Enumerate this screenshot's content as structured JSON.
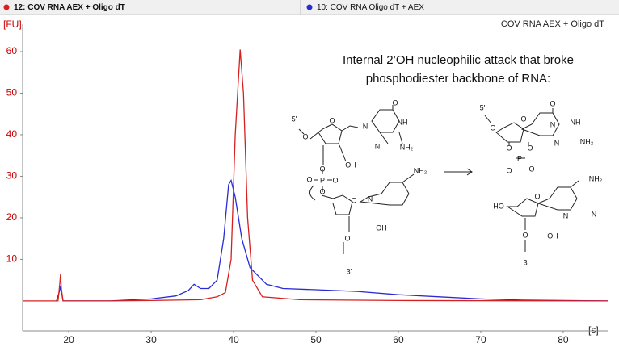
{
  "chart_data": {
    "type": "line",
    "subtitle": "COV RNA AEX + Oligo dT",
    "y_label": "[FU]",
    "x_label": "[s]",
    "annotation": [
      "Internal 2’OH nucleophilic attack that broke",
      "phosphodiester backbone of RNA:"
    ],
    "xlim": [
      14.4,
      85.4
    ],
    "ylim": [
      -7.2,
      66.6
    ],
    "xticks": [
      20,
      30,
      40,
      50,
      60,
      70,
      80
    ],
    "yticks": [
      10,
      20,
      30,
      40,
      50,
      60
    ],
    "series": [
      {
        "name": "12: COV RNA AEX + Oligo dT",
        "color": "#d62020",
        "x": [
          14.4,
          18.7,
          18.9,
          19.0,
          19.1,
          19.3,
          25,
          30,
          36,
          38,
          39,
          39.7,
          40.2,
          40.8,
          41.2,
          41.7,
          42.3,
          43.5,
          48,
          60,
          85.4
        ],
        "values": [
          0,
          0,
          4,
          6.5,
          3,
          0,
          0,
          0.1,
          0.3,
          1,
          2,
          10,
          40,
          60.5,
          50,
          20,
          5,
          1,
          0.3,
          0.1,
          0
        ]
      },
      {
        "name": "10: COV RNA Oligo dT + AEX",
        "color": "#2a2ad6",
        "x": [
          18.5,
          18.9,
          19.0,
          19.3,
          25,
          30,
          33,
          34.5,
          35.2,
          36,
          37,
          38,
          38.8,
          39.4,
          39.7,
          40.2,
          41,
          42,
          44,
          46,
          50,
          55,
          60,
          65,
          70,
          75,
          85.4
        ],
        "values": [
          0,
          2.5,
          3.5,
          0,
          0,
          0.5,
          1.2,
          2.5,
          4,
          3,
          3,
          5,
          15,
          28,
          29,
          25,
          15,
          8,
          4,
          3,
          2.7,
          2.3,
          1.5,
          1,
          0.5,
          0.2,
          0
        ]
      }
    ],
    "structure_labels": [
      "5'",
      "O",
      "O",
      "N",
      "O",
      "NH",
      "N",
      "NH₂",
      "OH",
      "O",
      "P",
      "O",
      "O",
      "O",
      "NH₂",
      "N",
      "O",
      "OH",
      "O",
      "3'",
      "5'",
      "O",
      "O",
      "N",
      "O",
      "NH",
      "N",
      "NH₂",
      "O",
      "P",
      "O",
      "O",
      "O",
      "HO",
      "O",
      "NH₂",
      "N",
      "N",
      "O",
      "OH",
      "3'"
    ]
  }
}
